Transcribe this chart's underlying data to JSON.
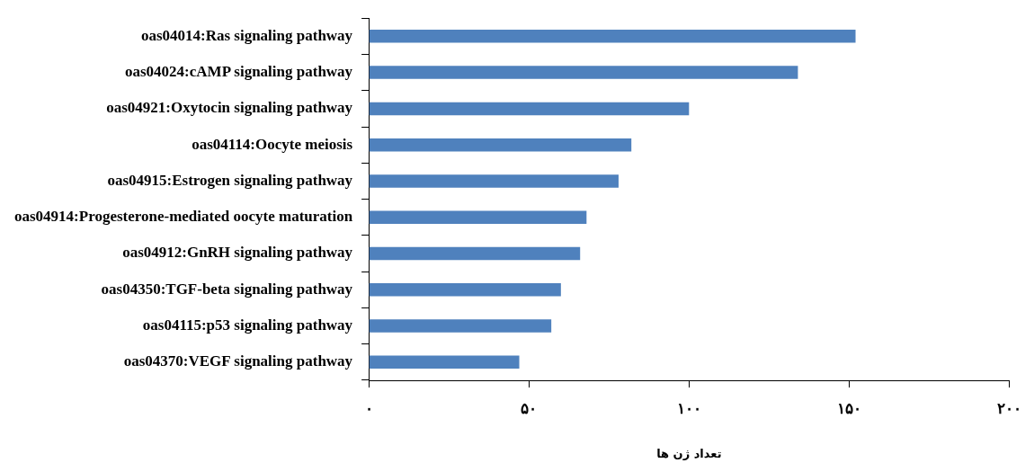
{
  "chart_data": {
    "type": "bar",
    "orientation": "horizontal",
    "xlabel": "تعداد ژن ها",
    "categories": [
      "oas04014:Ras signaling pathway",
      "oas04024:cAMP signaling pathway",
      "oas04921:Oxytocin signaling pathway",
      "oas04114:Oocyte meiosis",
      "oas04915:Estrogen signaling pathway",
      "oas04914:Progesterone-mediated oocyte maturation",
      "oas04912:GnRH signaling pathway",
      "oas04350:TGF-beta signaling pathway",
      "oas04115:p53 signaling pathway",
      "oas04370:VEGF signaling pathway"
    ],
    "values": [
      152,
      134,
      100,
      82,
      78,
      68,
      66,
      60,
      57,
      47
    ],
    "color": "#4f81bd",
    "xlim": [
      0,
      200
    ],
    "xticks": [
      {
        "value": 0,
        "label": "۰"
      },
      {
        "value": 50,
        "label": "۵۰"
      },
      {
        "value": 100,
        "label": "۱۰۰"
      },
      {
        "value": 150,
        "label": "۱۵۰"
      },
      {
        "value": 200,
        "label": "۲۰۰"
      }
    ],
    "grid": false,
    "legend": false
  }
}
